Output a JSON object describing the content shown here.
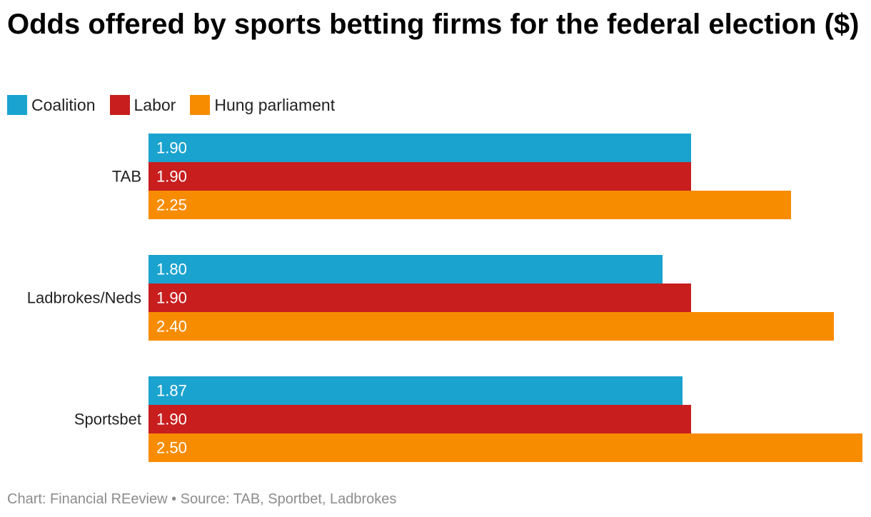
{
  "chart_data": {
    "type": "bar",
    "orientation": "horizontal",
    "title": "Odds offered by sports betting firms for the federal election ($)",
    "categories": [
      "TAB",
      "Ladbrokes/Neds",
      "Sportsbet"
    ],
    "series": [
      {
        "name": "Coalition",
        "color": "#1aa3cf",
        "values": [
          1.9,
          1.8,
          1.87
        ],
        "labels": [
          "1.90",
          "1.80",
          "1.87"
        ]
      },
      {
        "name": "Labor",
        "color": "#c81e1e",
        "values": [
          1.9,
          1.9,
          1.9
        ],
        "labels": [
          "1.90",
          "1.90",
          "1.90"
        ]
      },
      {
        "name": "Hung parliament",
        "color": "#f78c00",
        "values": [
          2.25,
          2.4,
          2.5
        ],
        "labels": [
          "2.25",
          "2.40",
          "2.50"
        ]
      }
    ],
    "xlim": [
      0,
      2.5
    ],
    "grid": false,
    "legend_position": "top-left",
    "xlabel": "",
    "ylabel": ""
  },
  "footer": "Chart: Financial REeview • Source: TAB, Sportbet, Ladbrokes"
}
